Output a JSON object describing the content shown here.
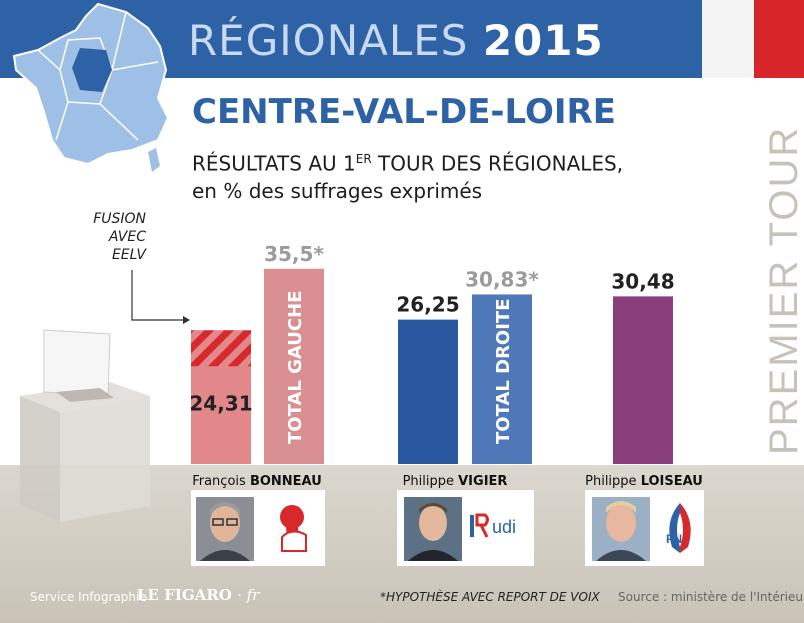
{
  "header": {
    "title_light": "RÉGIONALES",
    "title_bold": "2015"
  },
  "region": "CENTRE-VAL-DE-LOIRE",
  "subtitle": {
    "line1_pre": "RÉSULTATS AU 1",
    "line1_sup": "ER",
    "line1_post": " TOUR DES RÉGIONALES,",
    "line2": "en % des suffrages exprimés"
  },
  "side_label": "PREMIER TOUR",
  "fusion_note": [
    "FUSION",
    "AVEC",
    "EELV"
  ],
  "colors": {
    "header": "#2e62a6",
    "ps_light": "#e8898a",
    "ps_dark": "#d98a8c",
    "droite_bar": "#2a58a0",
    "droite_total": "#4f78b8",
    "fn_bar": "#8a3f7c",
    "hatch": "#d7282c"
  },
  "chart_data": {
    "type": "bar",
    "ylim": [
      0,
      40
    ],
    "bars": [
      {
        "id": "bonneau",
        "value": 24.31,
        "label": "24,31",
        "inner_label": "",
        "color": "#e3888a",
        "hatched": true
      },
      {
        "id": "total-gauche",
        "value": 35.5,
        "label": "35,5*",
        "inner_label": "TOTAL GAUCHE",
        "color": "#d98f92",
        "hatched": false
      },
      {
        "id": "vigier",
        "value": 26.25,
        "label": "26,25",
        "inner_label": "",
        "color": "#2a58a0",
        "hatched": false
      },
      {
        "id": "total-droite",
        "value": 30.83,
        "label": "30,83*",
        "inner_label": "TOTAL DROITE",
        "color": "#4f78b8",
        "hatched": false
      },
      {
        "id": "loiseau",
        "value": 30.48,
        "label": "30,48",
        "inner_label": "",
        "color": "#8a3f7c",
        "hatched": false
      }
    ]
  },
  "candidates": [
    {
      "first": "François",
      "last": "BONNEAU",
      "logo": "ps-rose-logo"
    },
    {
      "first": "Philippe",
      "last": "VIGIER",
      "logo": "lr-udi-logo",
      "logo_text": "udi"
    },
    {
      "first": "Philippe",
      "last": "LOISEAU",
      "logo": "fn-flame-logo",
      "logo_text": "FN"
    }
  ],
  "footer": {
    "credit": "Service Infographie",
    "brand": "LE FIGARO",
    "brand_suffix": "· fr",
    "note": "*HYPOTHÈSE AVEC REPORT DE VOIX",
    "source": "Source : ministère  de l'Intérieur"
  }
}
